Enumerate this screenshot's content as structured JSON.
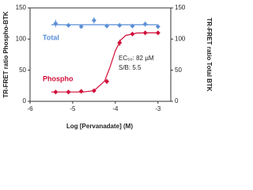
{
  "chart_data": {
    "type": "scatter",
    "xlabel": "Log [Pervanadate] (M)",
    "ylabel": "TR-FRET ratio Phospho-BTK",
    "y2label": "TR-FRET ratio Total BTK",
    "xlim": [
      -6,
      -2.7
    ],
    "xticks": [
      -6,
      -5,
      -4,
      -3
    ],
    "ylim": [
      0,
      150
    ],
    "yticks": [
      0,
      50,
      100,
      150
    ],
    "y2lim": [
      0,
      150
    ],
    "y2ticks": [
      0,
      50,
      100,
      150
    ],
    "annotations": [
      "EC₅₀: 82 µM",
      "S/B: 5.5"
    ],
    "series": [
      {
        "name": "Total",
        "color": "#5b8fd6",
        "axis": "y2",
        "marker": "diamond",
        "x": [
          -5.4,
          -5.1,
          -4.8,
          -4.5,
          -4.2,
          -3.9,
          -3.6,
          -3.3,
          -3.0
        ],
        "values": [
          125,
          122,
          120,
          130,
          121,
          122,
          121,
          124,
          120
        ],
        "errors": [
          6,
          3,
          2,
          5,
          3,
          3,
          2,
          4,
          3
        ],
        "fit_x": [
          -5.5,
          -3.0
        ],
        "fit_values": [
          123,
          123
        ]
      },
      {
        "name": "Phospho",
        "color": "#d0103a",
        "axis": "y",
        "marker": "diamond",
        "x": [
          -5.4,
          -5.1,
          -4.8,
          -4.5,
          -4.2,
          -3.9,
          -3.6,
          -3.3,
          -3.0
        ],
        "values": [
          15,
          15,
          16,
          17,
          32,
          94,
          108,
          110,
          110
        ],
        "errors": [
          1,
          1,
          1,
          2,
          4,
          5,
          2,
          2,
          2
        ],
        "fit_x": [
          -5.5,
          -5.25,
          -5.0,
          -4.75,
          -4.5,
          -4.25,
          -4.125,
          -4.0,
          -3.875,
          -3.75,
          -3.5,
          -3.25,
          -3.0
        ],
        "fit_values": [
          15,
          15,
          15,
          15,
          17.1,
          32.7,
          54.9,
          81.1,
          98.5,
          106,
          109.6,
          110,
          110
        ]
      }
    ]
  }
}
